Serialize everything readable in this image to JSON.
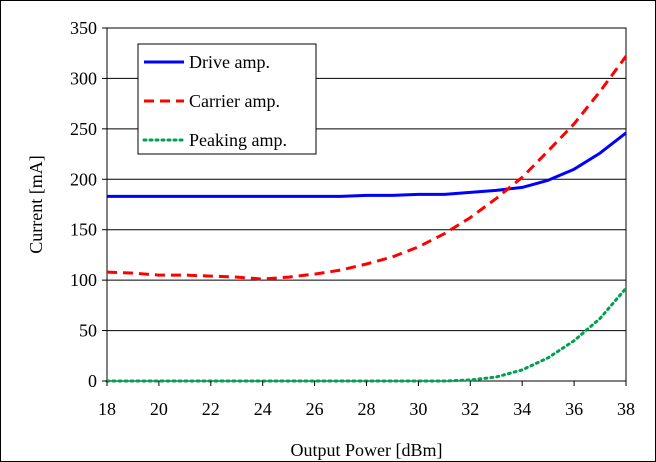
{
  "chart_data": {
    "type": "line",
    "title": "",
    "xlabel": "Output Power [dBm]",
    "ylabel": "Current [mA]",
    "xlim": [
      18,
      38
    ],
    "ylim": [
      0,
      350
    ],
    "xticks": [
      18,
      20,
      22,
      24,
      26,
      28,
      30,
      32,
      34,
      36,
      38
    ],
    "yticks": [
      0,
      50,
      100,
      150,
      200,
      250,
      300,
      350
    ],
    "grid": "horizontal",
    "legend_position": "top-left",
    "series": [
      {
        "name": "Drive amp.",
        "color": "#0000ff",
        "style": "solid",
        "x": [
          18,
          20,
          22,
          24,
          26,
          27,
          28,
          29,
          30,
          31,
          32,
          33,
          34,
          35,
          36,
          37,
          38
        ],
        "y": [
          183,
          183,
          183,
          183,
          183,
          183,
          184,
          184,
          185,
          185,
          187,
          189,
          192,
          199,
          210,
          226,
          246
        ]
      },
      {
        "name": "Carrier amp.",
        "color": "#ff0000",
        "style": "dashed",
        "x": [
          18,
          19,
          20,
          21,
          22,
          23,
          24,
          25,
          26,
          27,
          28,
          29,
          30,
          31,
          32,
          33,
          34,
          35,
          36,
          37,
          38
        ],
        "y": [
          108,
          107,
          105,
          105,
          104,
          103,
          101,
          103,
          106,
          110,
          116,
          123,
          133,
          146,
          162,
          181,
          202,
          228,
          255,
          287,
          322
        ]
      },
      {
        "name": "Peaking amp.",
        "color": "#00a050",
        "style": "dotted",
        "x": [
          18,
          20,
          22,
          24,
          26,
          28,
          30,
          31,
          32,
          33,
          34,
          35,
          36,
          37,
          38
        ],
        "y": [
          0,
          0,
          0,
          0,
          0,
          0,
          0,
          0,
          1,
          4,
          11,
          23,
          40,
          62,
          92
        ]
      }
    ]
  }
}
